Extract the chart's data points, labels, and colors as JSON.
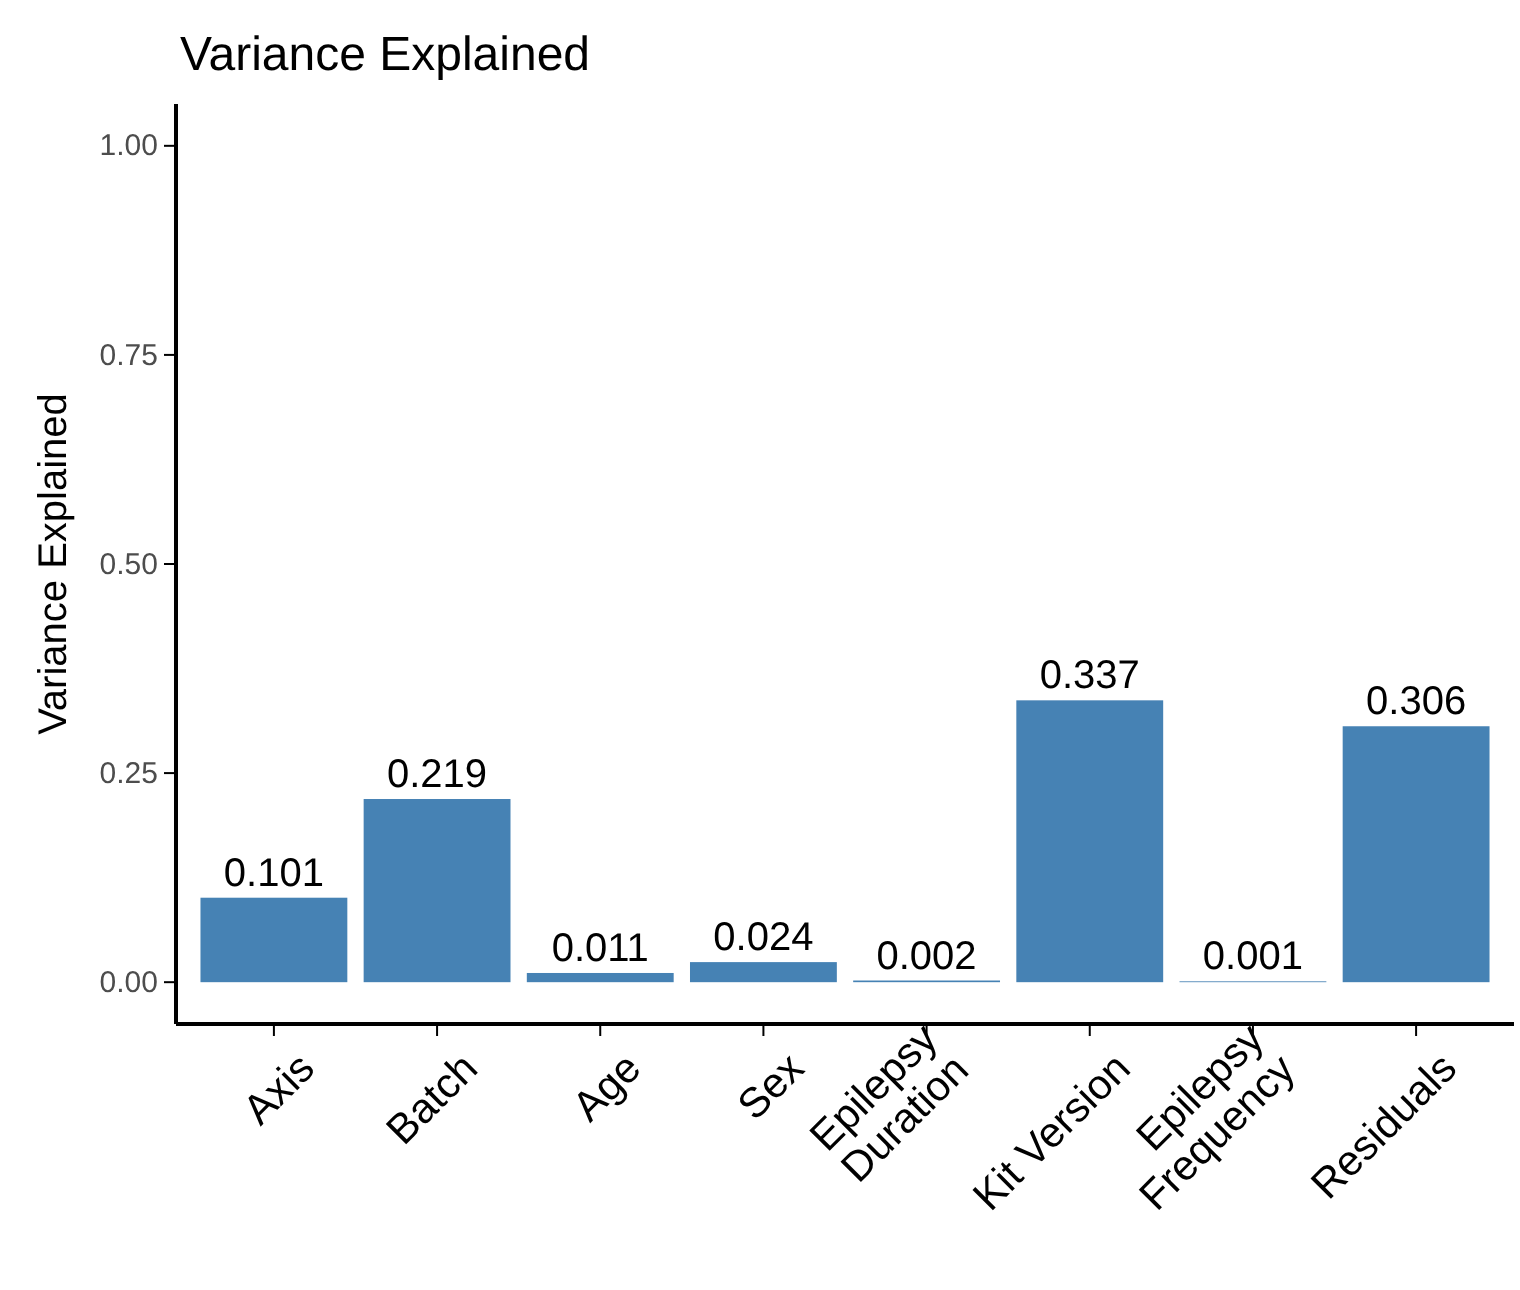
{
  "chart_data": {
    "type": "bar",
    "title": "Variance Explained",
    "ylabel": "Variance Explained",
    "categories": [
      "Axis",
      "Batch",
      "Age",
      "Sex",
      "Epilepsy\nDuration",
      "Kit Version",
      "Epilepsy\nFrequency",
      "Residuals"
    ],
    "values": [
      0.101,
      0.219,
      0.011,
      0.024,
      0.002,
      0.337,
      0.001,
      0.306
    ],
    "color": "#4682b4",
    "data_labels": true,
    "ylim": [
      -0.05,
      1.05
    ],
    "yticks": [
      {
        "value": 0,
        "label": "0.00"
      },
      {
        "value": 0.25,
        "label": "0.25"
      },
      {
        "value": 0.5,
        "label": "0.50"
      },
      {
        "value": 0.75,
        "label": "0.75"
      },
      {
        "value": 1,
        "label": "1.00"
      }
    ],
    "grid": false
  }
}
